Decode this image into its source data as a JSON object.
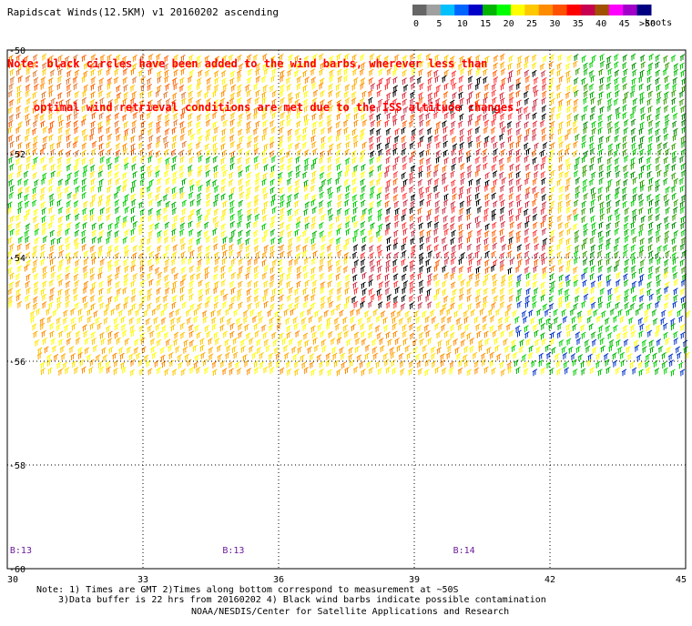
{
  "title": "Rapidscat Winds(12.5KM) v1 20160202 ascending",
  "note_lines": [
    "Note: black circles have been added to the wind barbs, wherever less than",
    "    optimal wind retrieval conditions are met due to the ISS altitude changes."
  ],
  "legend": {
    "labels": [
      "0",
      "5",
      "10",
      "15",
      "20",
      "25",
      "30",
      "35",
      "40",
      "45",
      ">50"
    ],
    "unit": "knots",
    "colors": [
      "#666666",
      "#a0a0a0",
      "#00c0ff",
      "#0064ff",
      "#0000c8",
      "#00b400",
      "#00ff00",
      "#ffff00",
      "#ffc800",
      "#ff8c00",
      "#ff5000",
      "#ff0000",
      "#c80050",
      "#a05000",
      "#ff00ff",
      "#a000c8",
      "#000080"
    ]
  },
  "chart_data": {
    "type": "map",
    "lon_ticks": [
      "30",
      "33",
      "36",
      "39",
      "42",
      "45"
    ],
    "lat_ticks": [
      "-50",
      "-52",
      "-54",
      "-56",
      "-58",
      "-60"
    ],
    "lon_range": [
      30,
      45
    ],
    "lat_range": [
      -60,
      -50
    ],
    "grid": true
  },
  "pass_labels": [
    {
      "text": "B:13",
      "lon": 30.3
    },
    {
      "text": "B:13",
      "lon": 35.0
    },
    {
      "text": "B:14",
      "lon": 40.1
    }
  ],
  "footer": {
    "note1": "Note: 1) Times are GMT 2)Times along bottom correspond to measurement at ~50S",
    "note2": "3)Data buffer is 22 hrs from 20160202 4) Black wind barbs indicate possible contamination",
    "credit": "NOAA/NESDIS/Center for Satellite Applications and Research"
  }
}
